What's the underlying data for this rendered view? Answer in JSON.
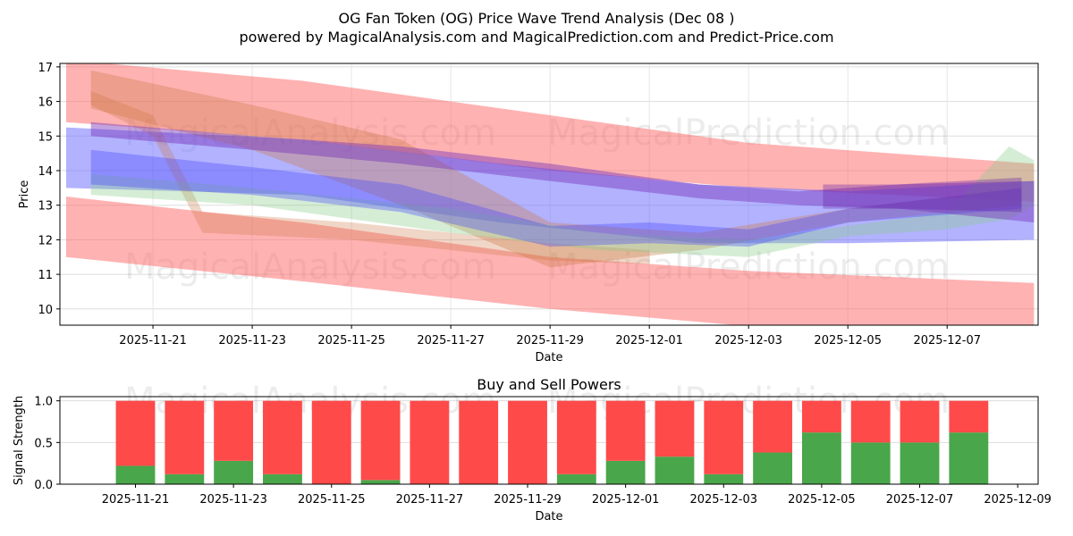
{
  "title": "OG Fan Token (OG) Price Wave Trend Analysis (Dec 08 )",
  "subtitle": "powered by MagicalAnalysis.com and MagicalPrediction.com and Predict-Price.com",
  "watermarks": [
    "MagicalAnalysis.com",
    "MagicalPrediction.com"
  ],
  "chart_data": [
    {
      "type": "area",
      "title": "",
      "xlabel": "Date",
      "ylabel": "Price",
      "xlim": [
        "2025-11-19T03:00",
        "2025-12-08T20:00"
      ],
      "ylim": [
        9.53,
        17.1
      ],
      "yticks": [
        10,
        11,
        12,
        13,
        14,
        15,
        16,
        17
      ],
      "xticks": [
        "2025-11-21",
        "2025-11-23",
        "2025-11-25",
        "2025-11-27",
        "2025-11-29",
        "2025-12-01",
        "2025-12-03",
        "2025-12-05",
        "2025-12-07"
      ],
      "grid": true,
      "bands": [
        {
          "name": "upper-red",
          "color": "#ff6666",
          "opacity": 0.5,
          "x": [
            "2025-11-19T06:00",
            "2025-11-24",
            "2025-11-29",
            "2025-12-03",
            "2025-12-08T18:00"
          ],
          "high": [
            17.2,
            16.6,
            15.6,
            14.8,
            14.2
          ],
          "low": [
            15.4,
            14.9,
            14.0,
            13.5,
            13.1
          ]
        },
        {
          "name": "lower-red",
          "color": "#ff6666",
          "opacity": 0.5,
          "x": [
            "2025-11-19T06:00",
            "2025-11-24",
            "2025-11-29",
            "2025-12-03",
            "2025-12-08T18:00"
          ],
          "high": [
            13.25,
            12.5,
            11.5,
            11.1,
            10.75
          ],
          "low": [
            11.5,
            10.8,
            10.0,
            9.5,
            9.4
          ]
        },
        {
          "name": "wide-blue",
          "color": "#6666ff",
          "opacity": 0.5,
          "x": [
            "2025-11-19T06:00",
            "2025-11-24",
            "2025-11-28",
            "2025-12-02",
            "2025-12-05",
            "2025-12-08T18:00"
          ],
          "high": [
            15.25,
            14.9,
            14.2,
            13.6,
            13.4,
            13.7
          ],
          "low": [
            13.5,
            13.3,
            12.5,
            11.9,
            11.9,
            12.0
          ]
        },
        {
          "name": "brown",
          "color": "#cc7744",
          "opacity": 0.35,
          "x": [
            "2025-11-19T18:00",
            "2025-11-23",
            "2025-11-26",
            "2025-11-29",
            "2025-12-02",
            "2025-12-05",
            "2025-12-08T12:00"
          ],
          "high": [
            16.9,
            15.9,
            14.9,
            12.5,
            12.2,
            12.9,
            13.5
          ],
          "low": [
            15.8,
            14.6,
            13.0,
            11.2,
            11.7,
            12.5,
            13.0
          ]
        },
        {
          "name": "brown-step",
          "color": "#cc7744",
          "opacity": 0.3,
          "x": [
            "2025-11-19T18:00",
            "2025-11-21",
            "2025-11-22",
            "2025-11-25",
            "2025-11-29",
            "2025-12-01"
          ],
          "high": [
            16.3,
            15.6,
            12.8,
            12.5,
            11.9,
            11.7
          ],
          "low": [
            15.9,
            15.0,
            12.2,
            12.0,
            11.4,
            11.3
          ]
        },
        {
          "name": "green",
          "color": "#88cc88",
          "opacity": 0.35,
          "x": [
            "2025-11-19T18:00",
            "2025-11-23",
            "2025-11-27",
            "2025-11-30",
            "2025-12-03",
            "2025-12-05",
            "2025-12-07",
            "2025-12-08T06:00",
            "2025-12-08T18:00"
          ],
          "high": [
            13.9,
            13.5,
            12.9,
            12.2,
            12.0,
            12.4,
            12.8,
            14.7,
            14.3
          ],
          "low": [
            13.3,
            13.0,
            12.2,
            11.7,
            11.5,
            12.1,
            12.3,
            12.6,
            13.0
          ]
        },
        {
          "name": "dark-blue",
          "color": "#4444ff",
          "opacity": 0.35,
          "x": [
            "2025-11-19T18:00",
            "2025-11-23",
            "2025-11-26",
            "2025-11-29",
            "2025-12-01",
            "2025-12-03",
            "2025-12-05",
            "2025-12-08T12:00"
          ],
          "high": [
            14.6,
            14.1,
            13.6,
            12.4,
            12.5,
            12.3,
            12.9,
            13.5
          ],
          "low": [
            13.6,
            13.3,
            12.8,
            11.8,
            11.9,
            11.8,
            12.5,
            12.9
          ]
        },
        {
          "name": "purple",
          "color": "#7733bb",
          "opacity": 0.45,
          "x": [
            "2025-11-19T18:00",
            "2025-11-23",
            "2025-11-26",
            "2025-11-29",
            "2025-12-02",
            "2025-12-04",
            "2025-12-06",
            "2025-12-08T18:00"
          ],
          "high": [
            15.4,
            15.0,
            14.7,
            14.2,
            13.6,
            13.4,
            13.6,
            13.7
          ],
          "low": [
            15.0,
            14.6,
            14.2,
            13.7,
            13.2,
            13.0,
            12.9,
            12.5
          ]
        },
        {
          "name": "purple-dark",
          "color": "#6622aa",
          "opacity": 0.35,
          "x": [
            "2025-12-04T12:00",
            "2025-12-06",
            "2025-12-08T12:00"
          ],
          "high": [
            13.6,
            13.6,
            13.8
          ],
          "low": [
            12.9,
            12.9,
            12.8
          ]
        }
      ]
    },
    {
      "type": "bar",
      "title": "Buy and Sell Powers",
      "xlabel": "Date",
      "ylabel": "Signal Strength",
      "xlim": [
        "2025-11-19T11:00",
        "2025-12-09T10:00"
      ],
      "ylim": [
        0,
        1.05
      ],
      "yticks": [
        "0.0",
        "0.5",
        "1.0"
      ],
      "xticks": [
        "2025-11-21",
        "2025-11-23",
        "2025-11-25",
        "2025-11-27",
        "2025-11-29",
        "2025-12-01",
        "2025-12-03",
        "2025-12-05",
        "2025-12-07",
        "2025-12-09"
      ],
      "categories": [
        "2025-11-21",
        "2025-11-22",
        "2025-11-23",
        "2025-11-24",
        "2025-11-25",
        "2025-11-26",
        "2025-11-27",
        "2025-11-28",
        "2025-11-29",
        "2025-11-30",
        "2025-12-01",
        "2025-12-02",
        "2025-12-03",
        "2025-12-04",
        "2025-12-05",
        "2025-12-06",
        "2025-12-07",
        "2025-12-08"
      ],
      "series": [
        {
          "name": "Buy",
          "color": "#4aa64a",
          "values": [
            0.22,
            0.12,
            0.28,
            0.12,
            0.0,
            0.05,
            0.0,
            0.0,
            0.0,
            0.12,
            0.28,
            0.33,
            0.12,
            0.38,
            0.62,
            0.5,
            0.5,
            0.62
          ]
        },
        {
          "name": "Sell",
          "color": "#ff4a4a",
          "values": [
            0.78,
            0.88,
            0.72,
            0.88,
            1.0,
            0.95,
            1.0,
            1.0,
            1.0,
            0.88,
            0.72,
            0.67,
            0.88,
            0.62,
            0.38,
            0.5,
            0.5,
            0.38
          ]
        }
      ]
    }
  ]
}
